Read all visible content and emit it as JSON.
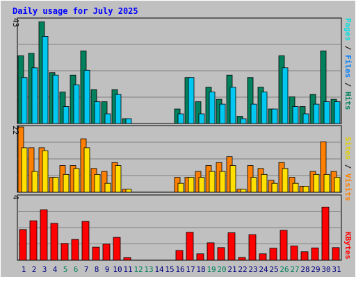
{
  "chart_data": [
    {
      "type": "bar",
      "title": "Daily usage for July 2025",
      "panel": "hits-files-pages",
      "ymax_label": "43",
      "ylim": [
        0,
        43
      ],
      "grid": true,
      "legend": [
        "Pages",
        "Files",
        "Hits"
      ],
      "legend_separator": " / ",
      "categories": [
        "1",
        "2",
        "3",
        "4",
        "5",
        "6",
        "7",
        "8",
        "9",
        "10",
        "11",
        "12",
        "13",
        "14",
        "15",
        "16",
        "17",
        "18",
        "19",
        "20",
        "21",
        "22",
        "23",
        "24",
        "25",
        "26",
        "27",
        "28",
        "29",
        "30",
        "31"
      ],
      "series": [
        {
          "name": "Hits",
          "color": "#00805c",
          "values": [
            28,
            29,
            42,
            21,
            13,
            20,
            30,
            14,
            9,
            14,
            2,
            0,
            0,
            0,
            0,
            6,
            19,
            9,
            15,
            10,
            20,
            3,
            19,
            15,
            6,
            28,
            11,
            7,
            12,
            30,
            10
          ]
        },
        {
          "name": "Files",
          "color": "#00c8f0",
          "values": [
            19,
            23,
            36,
            20,
            7,
            16,
            22,
            9,
            4,
            12,
            2,
            0,
            0,
            0,
            0,
            4,
            19,
            4,
            13,
            8,
            15,
            2,
            8,
            13,
            6,
            23,
            7,
            4,
            8,
            9,
            9
          ]
        },
        {
          "name": "Pages",
          "color": "#00e0e0",
          "values": [
            0,
            0,
            0,
            0,
            0,
            0,
            0,
            0,
            0,
            0,
            0,
            0,
            0,
            0,
            0,
            0,
            0,
            0,
            0,
            0,
            0,
            0,
            0,
            0,
            0,
            0,
            0,
            0,
            0,
            0,
            0
          ]
        }
      ]
    },
    {
      "type": "bar",
      "panel": "visits-sites",
      "ymax_label": "22",
      "ylim": [
        0,
        22
      ],
      "grid": true,
      "legend": [
        "Sites",
        "Visits"
      ],
      "legend_separator": " / ",
      "series": [
        {
          "name": "Visits",
          "color": "#ff8000",
          "values": [
            22,
            15,
            15,
            5,
            9,
            9,
            18,
            8,
            7,
            10,
            1,
            0,
            0,
            0,
            0,
            5,
            5,
            7,
            9,
            10,
            12,
            1,
            9,
            8,
            4,
            10,
            5,
            2,
            7,
            17,
            7
          ]
        },
        {
          "name": "Sites",
          "color": "#ffe000",
          "values": [
            15,
            7,
            14,
            5,
            6,
            8,
            15,
            6,
            3,
            9,
            1,
            0,
            0,
            0,
            0,
            3,
            5,
            5,
            7,
            7,
            9,
            1,
            5,
            6,
            3,
            8,
            3,
            2,
            6,
            6,
            5
          ]
        }
      ]
    },
    {
      "type": "bar",
      "panel": "kbytes",
      "ymax_label": "4",
      "ylim": [
        0,
        4
      ],
      "grid": true,
      "legend": [
        "KBytes"
      ],
      "series": [
        {
          "name": "KBytes",
          "color": "#ff0000",
          "values": [
            1.92,
            2.47,
            3.16,
            2.31,
            1.05,
            1.3,
            2.43,
            0.82,
            1.01,
            1.43,
            0.16,
            0,
            0,
            0,
            0,
            0.61,
            1.75,
            0.4,
            1.09,
            0.79,
            1.72,
            0.17,
            1.6,
            0.4,
            0.75,
            1.87,
            0.89,
            0.53,
            0.77,
            3.33,
            0.79
          ]
        }
      ]
    }
  ],
  "day_label_colors": [
    "#000080",
    "#000080",
    "#000080",
    "#000080",
    "#00805c",
    "#00805c",
    "#000080",
    "#000080",
    "#000080",
    "#000080",
    "#000080",
    "#00805c",
    "#00805c",
    "#000080",
    "#000080",
    "#000080",
    "#000080",
    "#000080",
    "#00805c",
    "#00805c",
    "#000080",
    "#000080",
    "#000080",
    "#000080",
    "#000080",
    "#00805c",
    "#00805c",
    "#000080",
    "#000080",
    "#000080",
    "#000080"
  ],
  "colors": {
    "background": "#c0c0c0",
    "grid": "#808080",
    "title": "#0000ff",
    "pages": "#00e0e0",
    "files": "#0080ff",
    "hits": "#00805c",
    "sites": "#e0d000",
    "visits": "#ff8000",
    "kbytes": "#ff0000"
  }
}
